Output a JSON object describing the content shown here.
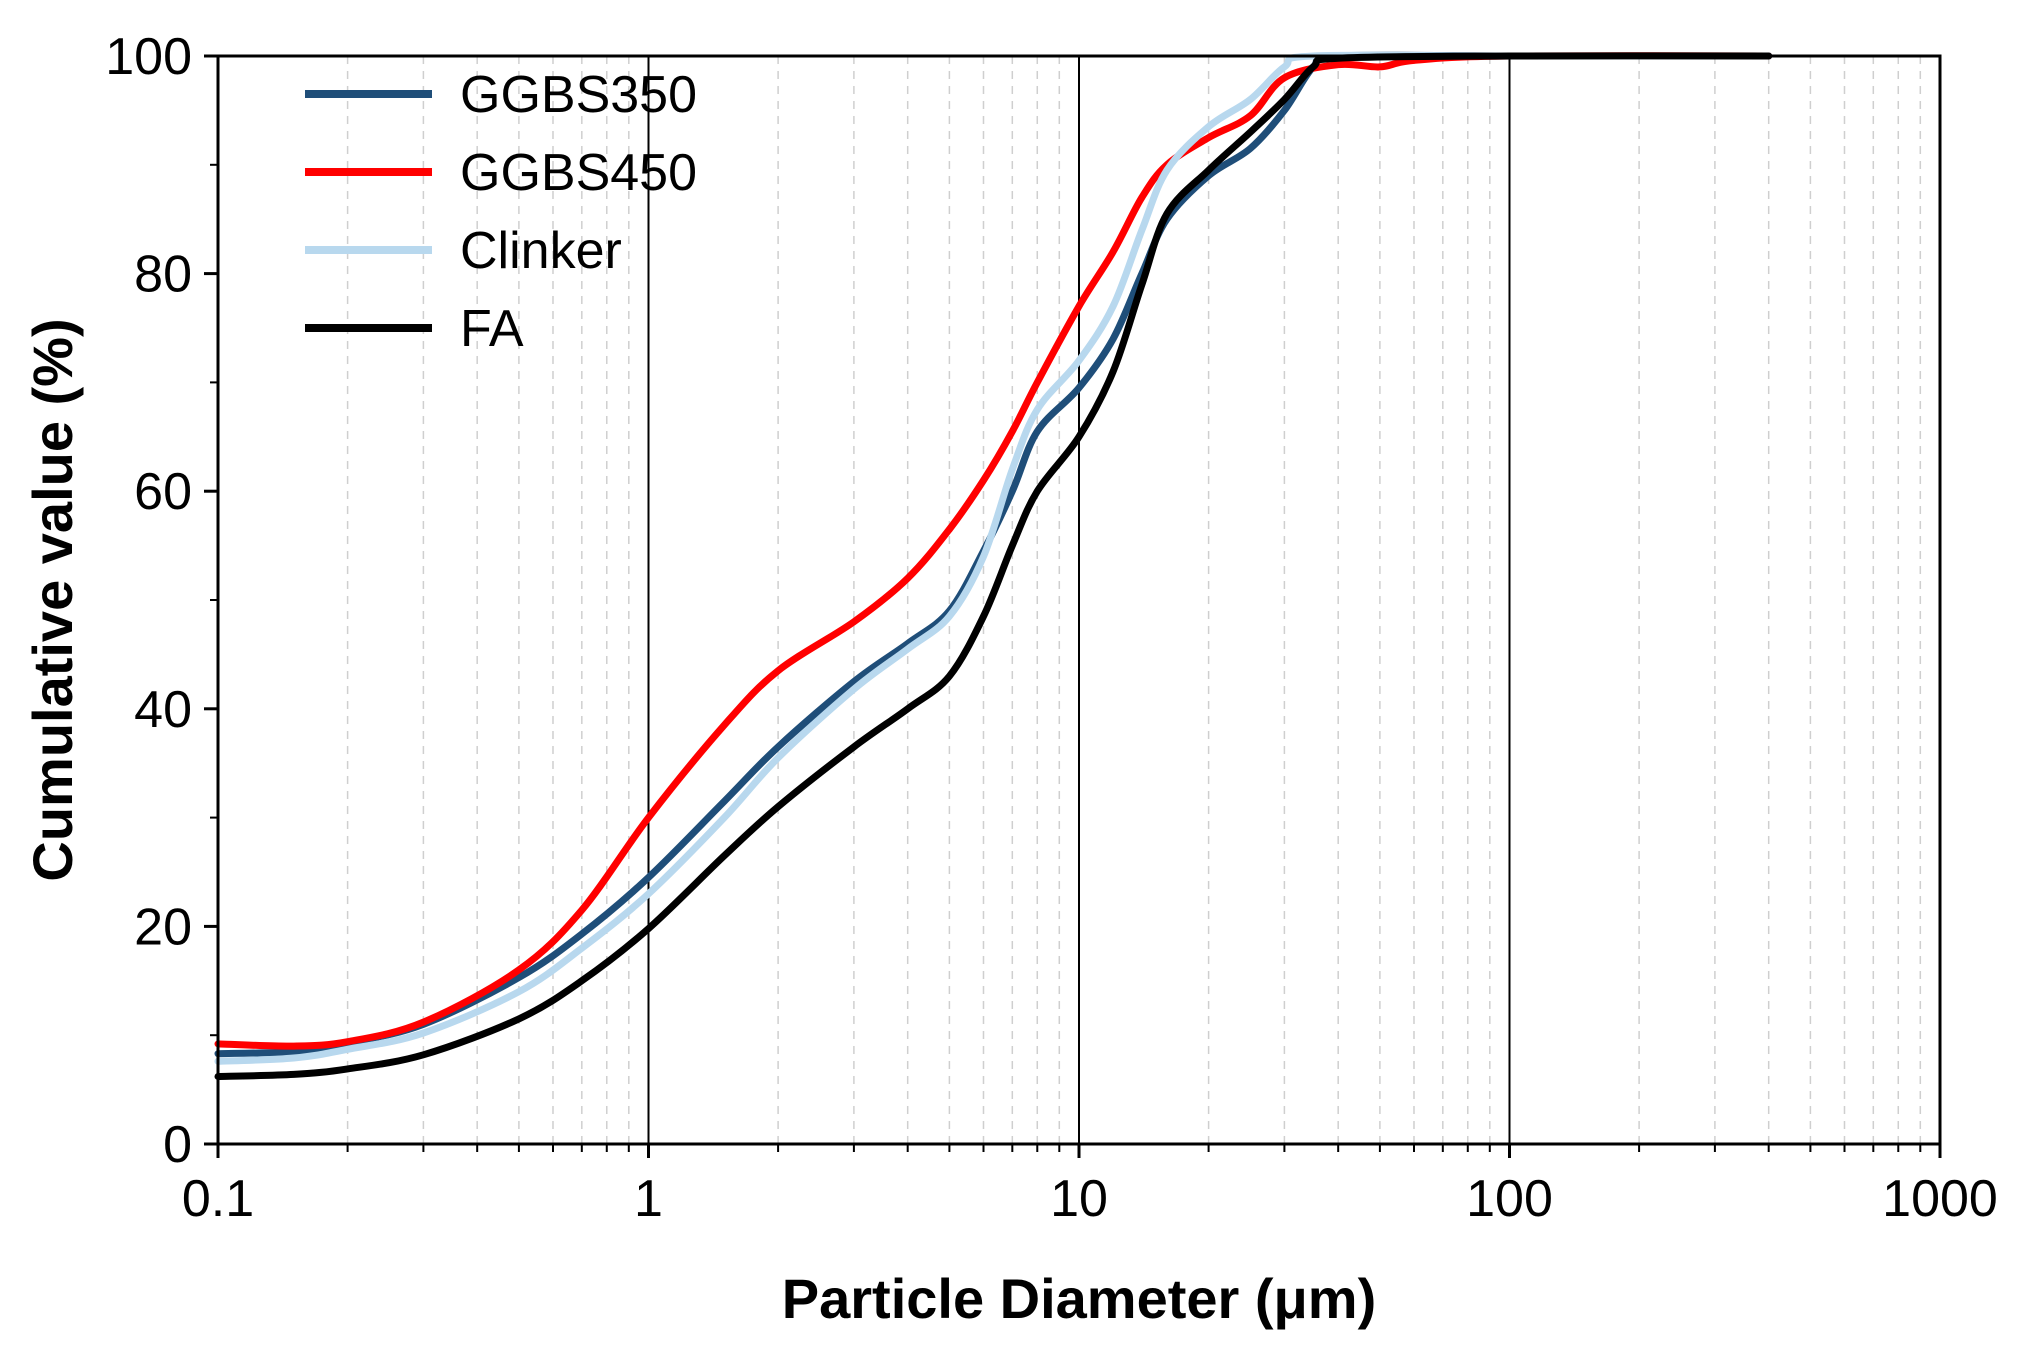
{
  "chart_data": {
    "type": "line",
    "title": "",
    "xlabel": "Particle Diameter (μm)",
    "ylabel": "Cumulative value (%)",
    "xscale": "log",
    "xlim": [
      0.1,
      1000
    ],
    "ylim": [
      0,
      100
    ],
    "x_ticks": [
      0.1,
      1,
      10,
      100,
      1000
    ],
    "x_tick_labels": [
      "0.1",
      "1",
      "10",
      "100",
      "1000"
    ],
    "y_ticks": [
      0,
      20,
      40,
      60,
      80,
      100
    ],
    "y_tick_labels": [
      "0",
      "20",
      "40",
      "60",
      "80",
      "100"
    ],
    "grid": "vertical minor dashed, major solid at decades",
    "legend_position": "top-left",
    "series": [
      {
        "name": "GGBS350",
        "color": "#1f4e79",
        "points": [
          [
            0.1,
            8.3
          ],
          [
            0.15,
            8.5
          ],
          [
            0.2,
            9.3
          ],
          [
            0.3,
            11.0
          ],
          [
            0.5,
            15.3
          ],
          [
            0.7,
            19.3
          ],
          [
            1,
            24.5
          ],
          [
            1.5,
            31.5
          ],
          [
            2,
            36.5
          ],
          [
            3,
            42.5
          ],
          [
            4,
            46.0
          ],
          [
            5,
            49.0
          ],
          [
            6,
            54.5
          ],
          [
            7,
            60.0
          ],
          [
            8,
            65.5
          ],
          [
            10,
            69.5
          ],
          [
            12,
            74.0
          ],
          [
            14,
            80.0
          ],
          [
            16,
            85.0
          ],
          [
            20,
            89.0
          ],
          [
            25,
            91.5
          ],
          [
            30,
            95.0
          ],
          [
            35,
            99.0
          ],
          [
            40,
            100
          ],
          [
            100,
            100
          ],
          [
            400,
            100
          ]
        ]
      },
      {
        "name": "GGBS450",
        "color": "#ff0000",
        "points": [
          [
            0.1,
            9.2
          ],
          [
            0.15,
            9.0
          ],
          [
            0.2,
            9.4
          ],
          [
            0.3,
            11.2
          ],
          [
            0.5,
            16.0
          ],
          [
            0.7,
            21.5
          ],
          [
            1,
            30.0
          ],
          [
            1.5,
            38.5
          ],
          [
            2,
            43.5
          ],
          [
            3,
            48.0
          ],
          [
            4,
            52.0
          ],
          [
            5,
            56.5
          ],
          [
            6,
            61.0
          ],
          [
            7,
            65.5
          ],
          [
            8,
            70.0
          ],
          [
            10,
            77.0
          ],
          [
            12,
            82.0
          ],
          [
            14,
            87.0
          ],
          [
            16,
            90.0
          ],
          [
            20,
            92.5
          ],
          [
            25,
            94.5
          ],
          [
            30,
            98.0
          ],
          [
            40,
            99.2
          ],
          [
            50,
            99.0
          ],
          [
            60,
            99.6
          ],
          [
            100,
            100
          ],
          [
            400,
            100
          ]
        ]
      },
      {
        "name": "Clinker",
        "color": "#b8d8ee",
        "points": [
          [
            0.1,
            7.6
          ],
          [
            0.15,
            7.9
          ],
          [
            0.2,
            8.7
          ],
          [
            0.3,
            10.2
          ],
          [
            0.5,
            14.0
          ],
          [
            0.7,
            18.0
          ],
          [
            1,
            23.0
          ],
          [
            1.5,
            30.0
          ],
          [
            2,
            35.5
          ],
          [
            3,
            41.8
          ],
          [
            4,
            45.5
          ],
          [
            5,
            48.5
          ],
          [
            6,
            54.0
          ],
          [
            7,
            62.0
          ],
          [
            8,
            67.5
          ],
          [
            10,
            72.0
          ],
          [
            12,
            77.0
          ],
          [
            14,
            84.0
          ],
          [
            16,
            89.5
          ],
          [
            20,
            93.5
          ],
          [
            25,
            96.0
          ],
          [
            30,
            99.0
          ],
          [
            35,
            100
          ],
          [
            100,
            100
          ],
          [
            400,
            100
          ]
        ]
      },
      {
        "name": "FA",
        "color": "#000000",
        "points": [
          [
            0.1,
            6.2
          ],
          [
            0.15,
            6.4
          ],
          [
            0.2,
            6.9
          ],
          [
            0.3,
            8.2
          ],
          [
            0.5,
            11.5
          ],
          [
            0.7,
            15.0
          ],
          [
            1,
            19.8
          ],
          [
            1.5,
            26.5
          ],
          [
            2,
            31.0
          ],
          [
            3,
            36.5
          ],
          [
            4,
            40.0
          ],
          [
            5,
            43.0
          ],
          [
            6,
            48.5
          ],
          [
            7,
            55.0
          ],
          [
            8,
            60.0
          ],
          [
            10,
            65.0
          ],
          [
            12,
            71.0
          ],
          [
            14,
            79.0
          ],
          [
            16,
            85.5
          ],
          [
            20,
            89.5
          ],
          [
            25,
            93.0
          ],
          [
            30,
            96.0
          ],
          [
            35,
            99.0
          ],
          [
            40,
            99.8
          ],
          [
            100,
            100
          ],
          [
            400,
            100
          ]
        ]
      }
    ]
  }
}
